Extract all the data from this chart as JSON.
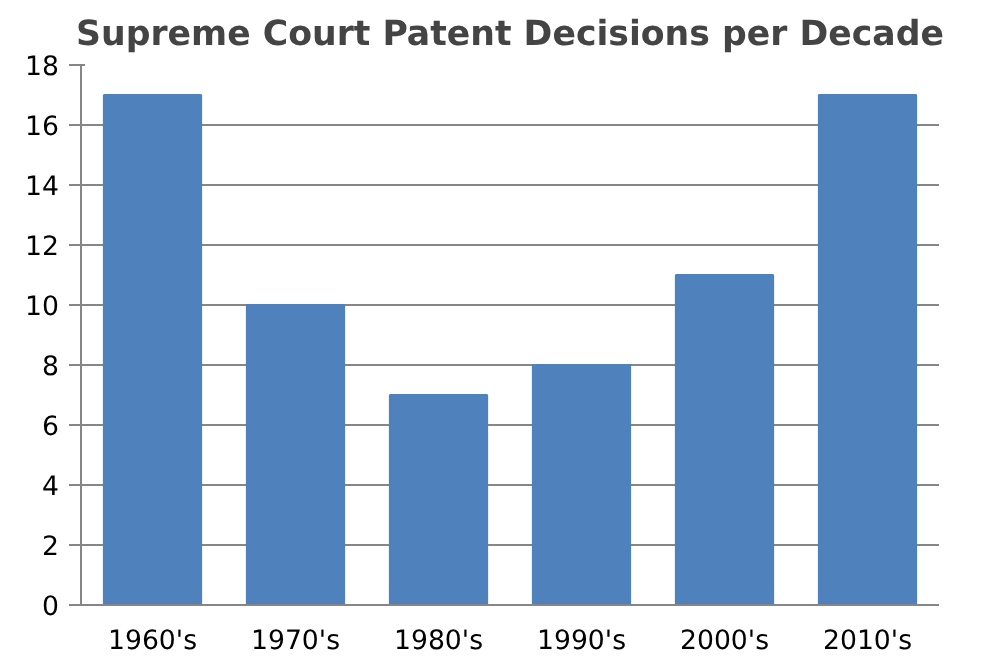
{
  "chart_data": {
    "type": "bar",
    "title": "Supreme Court Patent Decisions per Decade",
    "categories": [
      "1960's",
      "1970's",
      "1980's",
      "1990's",
      "2000's",
      "2010's"
    ],
    "values": [
      17,
      10,
      7,
      8,
      11,
      17
    ],
    "color": "#4f81bd",
    "ylim": [
      0,
      18
    ],
    "yticks": [
      0,
      2,
      4,
      6,
      8,
      10,
      12,
      14,
      16,
      18
    ],
    "grid": "y"
  }
}
